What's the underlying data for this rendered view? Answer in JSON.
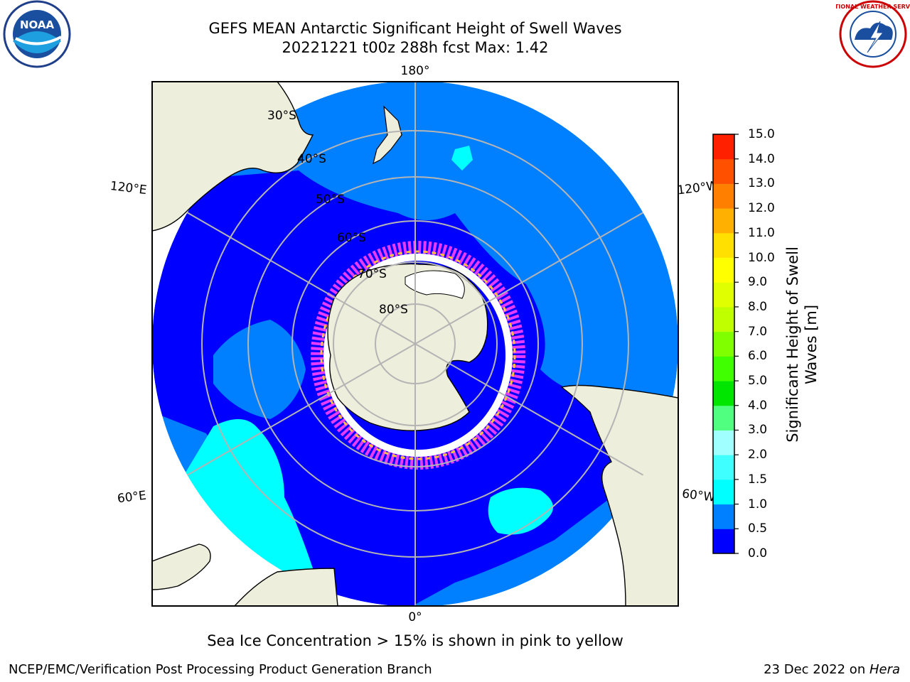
{
  "header": {
    "title_line1": "GEFS MEAN Antarctic Significant Height of Swell Waves",
    "title_line2": "20221221 t00z 288h fcst   Max: 1.42"
  },
  "logos": {
    "left": "noaa-logo",
    "right": "national-weather-service-logo",
    "left_text": "NOAA",
    "right_text": "NATIONAL WEATHER SERVICE"
  },
  "map": {
    "projection": "south-polar-stereographic",
    "longitude_labels": {
      "top": "180°",
      "bottom": "0°",
      "upper_left": "120°E",
      "lower_left": "60°E",
      "upper_right": "120°W",
      "lower_right": "60°W"
    },
    "latitude_labels": [
      "30°S",
      "40°S",
      "50°S",
      "60°S",
      "70°S",
      "80°S"
    ],
    "colors": {
      "ocean_low": "#0000ff",
      "ocean_mid": "#0080ff",
      "ocean_high": "#00ffff",
      "land": "#eeeedc",
      "sea_ice": "#ff40ff",
      "grid": "#b4b4b4"
    }
  },
  "colorbar": {
    "label_line1": "Significant Height of Swell",
    "label_line2": "Waves [m]",
    "ticks": [
      "15.0",
      "14.0",
      "13.0",
      "12.0",
      "11.0",
      "10.0",
      "9.0",
      "8.0",
      "7.0",
      "6.0",
      "5.0",
      "4.0",
      "3.0",
      "2.0",
      "1.5",
      "1.0",
      "0.5",
      "0.0"
    ],
    "colors_bottom_to_top": [
      "#0000ff",
      "#0080ff",
      "#00ffff",
      "#40ffff",
      "#a0ffff",
      "#50ff80",
      "#00e600",
      "#40ff00",
      "#80ff00",
      "#c0ff00",
      "#e0ff00",
      "#ffff00",
      "#ffe000",
      "#ffb000",
      "#ff8000",
      "#ff5000",
      "#ff2000"
    ]
  },
  "note": "Sea Ice Concentration > 15% is shown in pink to yellow",
  "footer": {
    "left": "NCEP/EMC/Verification Post Processing Product Generation Branch",
    "right_prefix": "23 Dec 2022 on ",
    "right_machine": "Hera"
  }
}
